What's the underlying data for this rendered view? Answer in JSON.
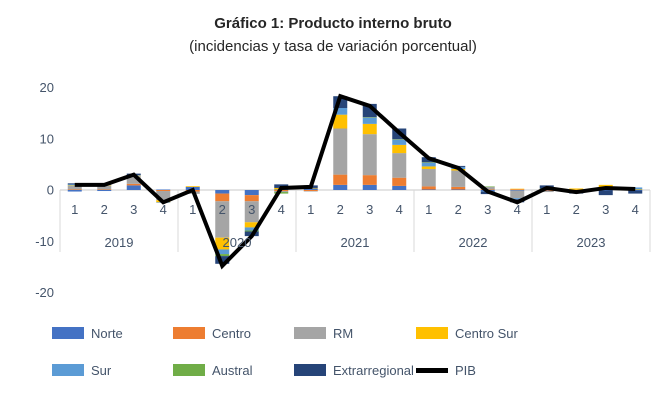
{
  "figure": {
    "title": "Gráfico 1: Producto interno bruto",
    "subtitle": "(incidencias y tasa de variación porcentual)"
  },
  "colors": {
    "axis_text": "#44546A",
    "title_text": "#262626",
    "axis_line": "#C9C9C9",
    "separator_line": "#D9D9D9",
    "background": "#FFFFFF"
  },
  "chart_data": {
    "type": "bar",
    "subtype": "stacked-bars-with-line-overlay",
    "title": "Gráfico 1: Producto interno bruto",
    "subtitle": "(incidencias y tasa de variación porcentual)",
    "xlabel": "",
    "ylabel": "",
    "ylim": [
      -20,
      20
    ],
    "y_ticks": [
      20,
      10,
      0,
      -10,
      -20
    ],
    "grid": false,
    "legend_position": "bottom",
    "years": [
      "2019",
      "2020",
      "2021",
      "2022",
      "2023"
    ],
    "quarter_labels": [
      "1",
      "2",
      "3",
      "4"
    ],
    "categories": [
      "2019-1",
      "2019-2",
      "2019-3",
      "2019-4",
      "2020-1",
      "2020-2",
      "2020-3",
      "2020-4",
      "2021-1",
      "2021-2",
      "2021-3",
      "2021-4",
      "2022-1",
      "2022-2",
      "2022-3",
      "2022-4",
      "2023-1",
      "2023-2",
      "2023-3",
      "2023-4"
    ],
    "bar_series": [
      {
        "name": "Norte",
        "color": "#4472C4",
        "values": [
          -0.3,
          -0.2,
          0.9,
          0.1,
          0.6,
          -0.7,
          -1.0,
          0.1,
          0.3,
          1.0,
          1.0,
          0.8,
          0.1,
          0.1,
          -0.2,
          -0.1,
          -0.1,
          -0.1,
          -0.1,
          -0.1
        ]
      },
      {
        "name": "Centro",
        "color": "#ED7D31",
        "values": [
          0.1,
          0.1,
          0.3,
          -0.2,
          -0.3,
          -1.5,
          -1.2,
          -0.2,
          -0.2,
          2.0,
          1.9,
          1.6,
          0.6,
          0.5,
          0.1,
          0.15,
          -0.1,
          0.05,
          0.1,
          0.0
        ]
      },
      {
        "name": "RM",
        "color": "#A5A5A5",
        "values": [
          0.7,
          0.75,
          1.5,
          -1.8,
          -0.45,
          -7.1,
          -4.1,
          -0.2,
          -0.1,
          9.0,
          8.0,
          4.8,
          3.4,
          3.2,
          0.5,
          -1.5,
          -0.2,
          -0.1,
          0.3,
          0.0
        ]
      },
      {
        "name": "Centro Sur",
        "color": "#FFC000",
        "values": [
          0.1,
          0.1,
          0.1,
          -0.4,
          0.15,
          -2.3,
          -1.0,
          0.3,
          0.1,
          2.7,
          2.0,
          1.6,
          0.5,
          0.3,
          0.0,
          0.1,
          0.15,
          0.25,
          0.6,
          0.1
        ]
      },
      {
        "name": "Sur",
        "color": "#5B9BD5",
        "values": [
          0.2,
          0.1,
          0.1,
          -0.1,
          0.0,
          -0.9,
          -0.6,
          0.0,
          0.0,
          1.3,
          1.2,
          1.0,
          0.7,
          0.4,
          -0.1,
          -0.2,
          0.0,
          0.0,
          0.0,
          0.4
        ]
      },
      {
        "name": "Austral",
        "color": "#70AD47",
        "values": [
          0.0,
          0.0,
          0.0,
          0.0,
          0.0,
          -0.4,
          -0.2,
          -0.3,
          0.0,
          0.0,
          0.1,
          0.1,
          0.1,
          0.0,
          0.1,
          0.0,
          0.15,
          0.0,
          0.0,
          0.0
        ]
      },
      {
        "name": "Extrarregional",
        "color": "#264478",
        "values": [
          0.2,
          0.2,
          0.3,
          0.0,
          0.0,
          -1.5,
          -0.9,
          0.7,
          0.5,
          2.3,
          2.6,
          2.1,
          1.0,
          0.2,
          -0.5,
          -0.6,
          0.6,
          -0.5,
          -0.9,
          -0.6
        ]
      }
    ],
    "line_series": {
      "name": "PIB",
      "color": "#000000",
      "values": [
        1.0,
        1.0,
        3.0,
        -2.4,
        0.0,
        -14.8,
        -9.0,
        0.4,
        0.6,
        18.3,
        16.4,
        11.2,
        6.2,
        4.3,
        -0.3,
        -2.4,
        0.4,
        -0.4,
        0.4,
        0.2
      ]
    }
  }
}
